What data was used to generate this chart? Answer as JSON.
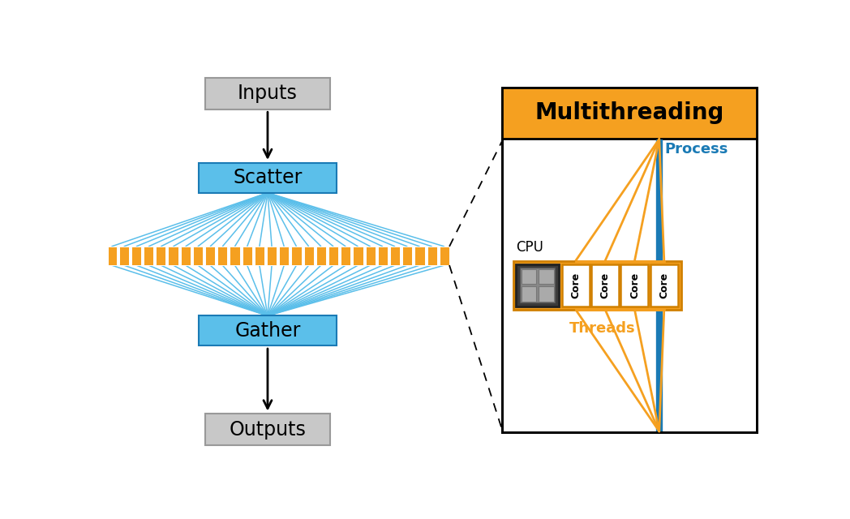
{
  "bg_color": "#ffffff",
  "blue_light": "#5bbfea",
  "blue_dark": "#1a7ab5",
  "orange_color": "#f5a020",
  "orange_dark": "#d08000",
  "gray_box": "#c8c8c8",
  "gray_border": "#888888",
  "black": "#000000",
  "process_blue": "#1a7ab5",
  "scatter_label": "Scatter",
  "gather_label": "Gather",
  "inputs_label": "Inputs",
  "outputs_label": "Outputs",
  "multithreading_label": "Multithreading",
  "process_label": "Process",
  "threads_label": "Threads",
  "cpu_label": "CPU",
  "core_label": "Core",
  "num_tasks": 28
}
